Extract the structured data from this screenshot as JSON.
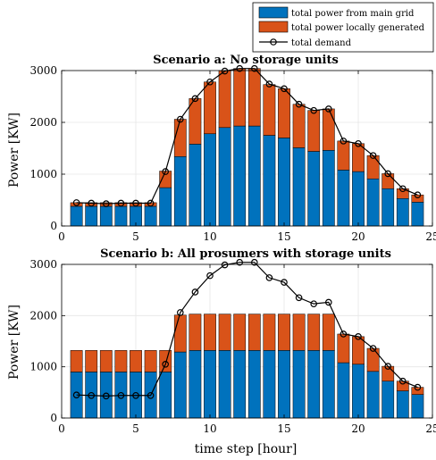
{
  "legend": {
    "grid_label": "total power from main grid",
    "local_label": "total power locally generated",
    "demand_label": "total demand"
  },
  "colors": {
    "grid": "#0072BD",
    "local": "#D95319",
    "demand_line": "#000000",
    "gridlines": "#e6e6e6"
  },
  "chart_data": [
    {
      "type": "bar",
      "stacked": true,
      "title": "Scenario a:  No storage units",
      "ylabel": "Power [KW]",
      "xlabel": "",
      "xlim": [
        0,
        25
      ],
      "ylim": [
        0,
        3000
      ],
      "xticks": [
        "0",
        "5",
        "10",
        "15",
        "20",
        "25"
      ],
      "yticks": [
        "0",
        "1000",
        "2000",
        "3000"
      ],
      "grid": true,
      "legend_position": "above-right",
      "x": [
        1,
        2,
        3,
        4,
        5,
        6,
        7,
        8,
        9,
        10,
        11,
        12,
        13,
        14,
        15,
        16,
        17,
        18,
        19,
        20,
        21,
        22,
        23,
        24
      ],
      "series": [
        {
          "name": "total power from main grid",
          "kind": "bar",
          "values": [
            380,
            380,
            380,
            380,
            380,
            380,
            740,
            1340,
            1580,
            1780,
            1900,
            1930,
            1930,
            1750,
            1700,
            1510,
            1440,
            1460,
            1080,
            1050,
            910,
            720,
            530,
            460
          ]
        },
        {
          "name": "total power locally generated",
          "kind": "bar",
          "values": [
            70,
            70,
            70,
            70,
            70,
            70,
            320,
            720,
            880,
            1000,
            1100,
            1110,
            1110,
            980,
            950,
            840,
            790,
            800,
            560,
            540,
            450,
            290,
            190,
            140
          ]
        },
        {
          "name": "total demand",
          "kind": "line",
          "values": [
            450,
            440,
            430,
            440,
            440,
            440,
            1050,
            2060,
            2460,
            2780,
            2990,
            3040,
            3040,
            2740,
            2650,
            2350,
            2230,
            2260,
            1640,
            1590,
            1360,
            1010,
            720,
            600
          ]
        }
      ]
    },
    {
      "type": "bar",
      "stacked": true,
      "title": "Scenario b:  All prosumers with storage units",
      "ylabel": "Power [KW]",
      "xlabel": "time step [hour]",
      "xlim": [
        0,
        25
      ],
      "ylim": [
        0,
        3000
      ],
      "xticks": [
        "0",
        "5",
        "10",
        "15",
        "20",
        "25"
      ],
      "yticks": [
        "0",
        "1000",
        "2000",
        "3000"
      ],
      "grid": true,
      "x": [
        1,
        2,
        3,
        4,
        5,
        6,
        7,
        8,
        9,
        10,
        11,
        12,
        13,
        14,
        15,
        16,
        17,
        18,
        19,
        20,
        21,
        22,
        23,
        24
      ],
      "series": [
        {
          "name": "total power from main grid",
          "kind": "bar",
          "values": [
            900,
            900,
            900,
            900,
            900,
            900,
            900,
            1290,
            1320,
            1320,
            1320,
            1320,
            1320,
            1320,
            1320,
            1320,
            1320,
            1320,
            1080,
            1050,
            910,
            720,
            530,
            460
          ]
        },
        {
          "name": "total power locally generated",
          "kind": "bar",
          "values": [
            420,
            420,
            420,
            420,
            420,
            420,
            420,
            720,
            710,
            710,
            710,
            710,
            710,
            710,
            710,
            710,
            710,
            710,
            560,
            540,
            450,
            290,
            190,
            140
          ]
        },
        {
          "name": "total demand",
          "kind": "line",
          "values": [
            450,
            440,
            430,
            440,
            440,
            440,
            1050,
            2060,
            2460,
            2780,
            2990,
            3040,
            3040,
            2740,
            2650,
            2350,
            2230,
            2260,
            1640,
            1590,
            1360,
            1010,
            720,
            600
          ]
        }
      ]
    }
  ]
}
